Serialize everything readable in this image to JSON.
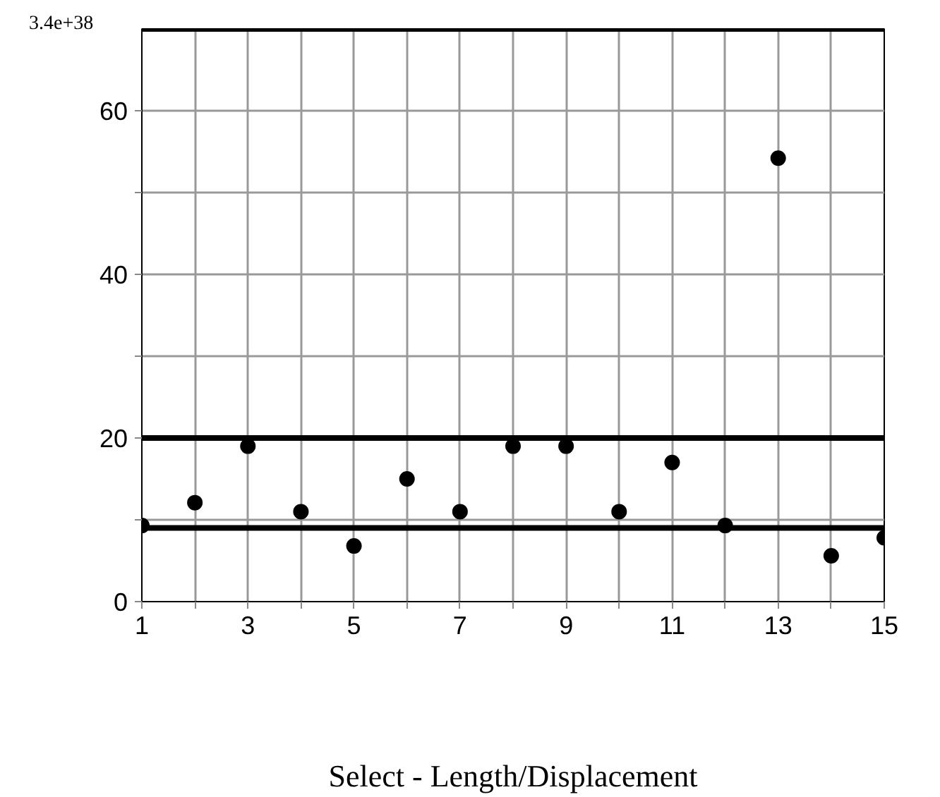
{
  "chart_data": {
    "type": "scatter",
    "xlabel": "Select - Length/Displacement",
    "x": [
      1,
      2,
      3,
      4,
      5,
      6,
      7,
      8,
      9,
      10,
      11,
      12,
      13,
      14,
      15
    ],
    "series": [
      {
        "color": "#000000",
        "values": [
          9.3,
          12.1,
          19,
          11,
          6.8,
          15,
          11,
          19,
          19,
          11,
          17,
          9.3,
          54.2,
          5.6,
          7.8
        ]
      }
    ],
    "xlim": [
      1,
      15
    ],
    "xticks": [
      1,
      {
        "value": 2,
        "label": null
      },
      3,
      {
        "value": 4,
        "label": null
      },
      5,
      {
        "value": 6,
        "label": null
      },
      7,
      {
        "value": 8,
        "label": null
      },
      9,
      {
        "value": 10,
        "label": null
      },
      11,
      {
        "value": 12,
        "label": null
      },
      13,
      {
        "value": 14,
        "label": null
      },
      15
    ],
    "ylim": [
      0,
      70
    ],
    "yticks": [
      0,
      {
        "value": 10,
        "label": null
      },
      20,
      {
        "value": 30,
        "label": null
      },
      40,
      {
        "value": 50,
        "label": null
      },
      60
    ],
    "annotations": [
      "3.4e+38"
    ],
    "ref_lines": [
      {
        "axis": "y",
        "value": 9,
        "color": "#000000"
      },
      {
        "axis": "y",
        "value": 20,
        "color": "#000000"
      },
      {
        "axis": "y",
        "value": 70,
        "color": "#000000"
      }
    ],
    "grid": true,
    "marker": "circle"
  }
}
